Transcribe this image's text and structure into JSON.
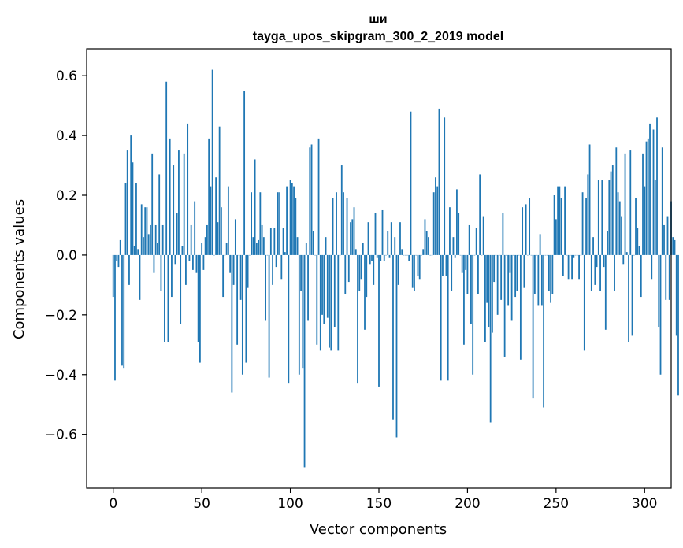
{
  "chart_data": {
    "type": "bar",
    "title": "ши",
    "subtitle": "tayga_upos_skipgram_300_2_2019 model",
    "xlabel": "Vector components",
    "ylabel": "Components values",
    "xlim": [
      -15,
      315
    ],
    "ylim": [
      -0.78,
      0.69
    ],
    "xticks": [
      0,
      50,
      100,
      150,
      200,
      250,
      300
    ],
    "yticks": [
      -0.6,
      -0.4,
      -0.2,
      0.0,
      0.2,
      0.4,
      0.6
    ],
    "ytick_labels": [
      "−0.6",
      "−0.4",
      "−0.2",
      "0.0",
      "0.2",
      "0.4",
      "0.6"
    ],
    "bar_color": "#1f77b4",
    "values": [
      -0.14,
      -0.42,
      -0.02,
      -0.04,
      0.05,
      -0.37,
      -0.38,
      0.24,
      0.35,
      -0.1,
      0.4,
      0.31,
      0.03,
      0.24,
      0.02,
      -0.15,
      0.17,
      0.06,
      0.16,
      0.16,
      0.07,
      0.1,
      0.34,
      -0.06,
      0.1,
      0.04,
      0.27,
      -0.12,
      0.1,
      -0.29,
      0.58,
      -0.29,
      0.39,
      -0.14,
      0.3,
      -0.03,
      0.14,
      0.35,
      -0.23,
      0.03,
      0.34,
      -0.1,
      0.44,
      -0.02,
      0.1,
      -0.05,
      0.18,
      -0.06,
      -0.29,
      -0.36,
      0.04,
      -0.05,
      0.06,
      0.1,
      0.39,
      0.23,
      0.62,
      0.0,
      0.26,
      0.11,
      0.43,
      0.16,
      -0.14,
      0.0,
      0.04,
      0.23,
      -0.06,
      -0.46,
      -0.1,
      0.12,
      -0.3,
      0.0,
      -0.15,
      -0.4,
      0.55,
      -0.36,
      -0.11,
      0.0,
      0.21,
      0.06,
      0.32,
      0.04,
      0.05,
      0.21,
      0.1,
      0.06,
      -0.22,
      0.0,
      -0.41,
      0.09,
      -0.1,
      0.09,
      -0.04,
      0.21,
      0.21,
      -0.08,
      0.09,
      0.01,
      0.23,
      -0.43,
      0.25,
      0.24,
      0.23,
      0.19,
      0.06,
      -0.4,
      -0.12,
      -0.38,
      -0.71,
      0.04,
      -0.22,
      0.36,
      0.37,
      0.08,
      0.0,
      -0.3,
      0.39,
      -0.32,
      -0.2,
      -0.23,
      0.06,
      -0.21,
      -0.31,
      -0.32,
      0.19,
      -0.24,
      0.21,
      -0.32,
      0.0,
      0.3,
      0.21,
      -0.13,
      0.19,
      -0.09,
      0.11,
      0.12,
      0.16,
      0.02,
      -0.43,
      -0.12,
      -0.08,
      0.04,
      -0.25,
      -0.14,
      0.11,
      -0.03,
      -0.02,
      -0.1,
      0.14,
      -0.01,
      -0.44,
      -0.02,
      0.15,
      -0.02,
      0.0,
      0.08,
      -0.01,
      0.11,
      -0.55,
      0.06,
      -0.61,
      -0.1,
      0.11,
      0.02,
      0.0,
      0.0,
      0.0,
      -0.02,
      0.48,
      -0.11,
      -0.12,
      0.0,
      -0.07,
      -0.08,
      0.0,
      0.02,
      0.12,
      0.08,
      0.06,
      0.0,
      0.0,
      0.21,
      0.26,
      0.23,
      0.49,
      -0.42,
      -0.07,
      0.46,
      -0.07,
      -0.42,
      0.16,
      -0.12,
      0.06,
      -0.01,
      0.22,
      0.14,
      0.0,
      -0.06,
      -0.3,
      -0.05,
      -0.13,
      0.1,
      -0.23,
      -0.4,
      0.0,
      0.09,
      -0.13,
      0.27,
      0.0,
      0.13,
      -0.29,
      -0.16,
      -0.24,
      -0.56,
      -0.26,
      -0.09,
      0.0,
      -0.2,
      0.0,
      -0.15,
      0.14,
      -0.34,
      0.0,
      -0.17,
      -0.06,
      -0.22,
      0.0,
      -0.14,
      -0.12,
      0.0,
      -0.35,
      0.16,
      -0.11,
      0.17,
      0.0,
      0.19,
      0.0,
      -0.48,
      -0.13,
      0.0,
      -0.17,
      0.07,
      -0.17,
      -0.51,
      0.0,
      0.0,
      -0.12,
      -0.16,
      -0.13,
      0.2,
      0.12,
      0.23,
      0.23,
      0.19,
      -0.07,
      0.23,
      0.0,
      -0.08,
      0.0,
      -0.08,
      -0.01,
      0.0,
      0.0,
      -0.08,
      0.0,
      0.21,
      -0.32,
      0.19,
      0.27,
      0.37,
      -0.12,
      0.06,
      -0.1,
      -0.04,
      0.25,
      -0.12,
      0.25,
      -0.04,
      -0.25,
      0.08,
      0.25,
      0.28,
      0.3,
      -0.12,
      0.36,
      0.21,
      0.18,
      0.13,
      -0.03,
      0.34,
      0.01,
      -0.29,
      0.35,
      -0.27,
      0.0,
      0.19,
      0.09,
      0.03,
      -0.14,
      0.34,
      0.23,
      0.38,
      0.39,
      0.44,
      -0.08,
      0.42,
      0.25,
      0.46,
      -0.24,
      -0.4,
      0.36,
      0.1,
      -0.15,
      0.13,
      -0.15,
      0.18,
      0.06,
      0.05,
      -0.27,
      -0.47
    ]
  }
}
